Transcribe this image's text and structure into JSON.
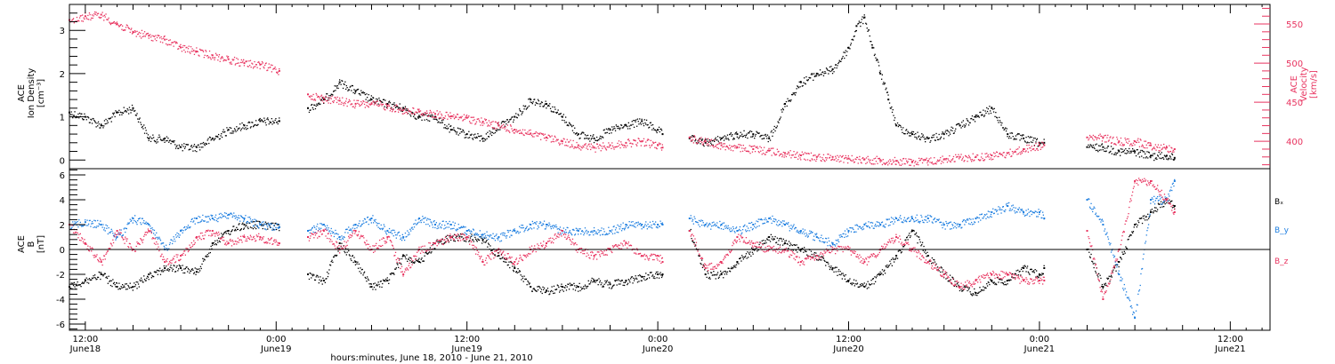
{
  "window": {
    "title": ""
  },
  "colors": {
    "density": "#000000",
    "velocity": "#e8335f",
    "bx": "#000000",
    "by": "#1f7fe0",
    "bz": "#e8335f",
    "frame": "#000000"
  },
  "xaxis": {
    "label": "hours:minutes, June 18, 2010 - June 21, 2010",
    "tick_labels": [
      {
        "hour": 12,
        "time": "12:00",
        "date": "June18"
      },
      {
        "hour": 24,
        "time": "0:00",
        "date": "June19"
      },
      {
        "hour": 36,
        "time": "12:00",
        "date": "June19"
      },
      {
        "hour": 48,
        "time": "0:00",
        "date": "June20"
      },
      {
        "hour": 60,
        "time": "12:00",
        "date": "June20"
      },
      {
        "hour": 72,
        "time": "0:00",
        "date": "June21"
      },
      {
        "hour": 84,
        "time": "12:00",
        "date": "June21"
      }
    ]
  },
  "chart_data": [
    {
      "type": "scatter",
      "panel": "top",
      "title": "",
      "left_axis": {
        "label_lines": [
          "ACE",
          "Ion Density",
          "[cm⁻³]"
        ],
        "ylim": [
          -0.2,
          3.6
        ],
        "ticks": [
          0,
          1,
          2,
          3
        ]
      },
      "right_axis": {
        "label_lines": [
          "ACE",
          "Velocity",
          "[km/s]"
        ],
        "ylim": [
          365,
          575
        ],
        "ticks": [
          400,
          450,
          500,
          550
        ]
      },
      "xlim_hours": [
        11.0,
        86.5
      ],
      "grid": false,
      "series": [
        {
          "axis": "left",
          "color": "density",
          "x_hours": [
            11.0,
            12.0,
            13.0,
            14.0,
            15.0,
            16.0,
            17.0,
            18.0,
            19.0,
            20.0,
            21.0,
            22.0,
            23.0,
            24.2,
            26.0,
            27.0,
            28.0,
            29.0,
            30.0,
            31.0,
            32.0,
            33.0,
            34.0,
            35.0,
            36.0,
            37.0,
            38.0,
            39.0,
            40.0,
            41.0,
            42.0,
            43.0,
            44.0,
            45.0,
            46.0,
            47.0,
            48.0,
            48.3,
            50.0,
            51.0,
            52.0,
            53.0,
            54.0,
            55.0,
            56.0,
            57.0,
            58.0,
            59.0,
            60.0,
            60.5,
            61.0,
            61.5,
            62.0,
            62.5,
            63.0,
            64.0,
            65.0,
            66.0,
            67.0,
            68.0,
            69.0,
            70.0,
            71.0,
            72.0,
            72.3,
            75.0,
            76.0,
            77.0,
            78.0,
            79.0,
            80.0,
            80.5
          ],
          "y": [
            1.1,
            1.0,
            0.8,
            1.1,
            1.2,
            0.5,
            0.5,
            0.3,
            0.3,
            0.5,
            0.7,
            0.8,
            0.9,
            0.9,
            1.2,
            1.4,
            1.8,
            1.6,
            1.4,
            1.3,
            1.2,
            1.0,
            1.0,
            0.7,
            0.6,
            0.5,
            0.8,
            1.0,
            1.4,
            1.3,
            1.0,
            0.6,
            0.5,
            0.7,
            0.8,
            0.9,
            0.7,
            0.6,
            0.5,
            0.4,
            0.5,
            0.6,
            0.6,
            0.5,
            1.3,
            1.8,
            2.0,
            2.1,
            2.6,
            3.1,
            3.3,
            2.6,
            2.0,
            1.4,
            0.8,
            0.6,
            0.5,
            0.6,
            0.8,
            1.0,
            1.2,
            0.6,
            0.5,
            0.4,
            0.4,
            0.3,
            0.3,
            0.2,
            0.2,
            0.1,
            0.1,
            0.05
          ]
        },
        {
          "axis": "right",
          "color": "velocity",
          "x_hours": [
            11.0,
            12.0,
            13.0,
            14.0,
            15.0,
            16.0,
            17.0,
            18.0,
            19.0,
            20.0,
            21.0,
            22.0,
            23.0,
            24.2,
            26.0,
            27.0,
            28.0,
            29.0,
            30.0,
            31.0,
            32.0,
            33.0,
            34.0,
            35.0,
            36.0,
            37.0,
            38.0,
            39.0,
            40.0,
            41.0,
            42.0,
            43.0,
            44.0,
            45.0,
            46.0,
            47.0,
            48.0,
            48.3,
            50.0,
            51.0,
            52.0,
            53.0,
            54.0,
            55.0,
            56.0,
            57.0,
            58.0,
            59.0,
            60.0,
            61.0,
            62.0,
            63.0,
            64.0,
            65.0,
            66.0,
            67.0,
            68.0,
            69.0,
            70.0,
            71.0,
            72.0,
            72.3,
            75.0,
            76.0,
            77.0,
            78.0,
            79.0,
            80.0,
            80.5
          ],
          "y": [
            555,
            560,
            562,
            550,
            540,
            535,
            530,
            520,
            515,
            510,
            505,
            500,
            498,
            490,
            460,
            455,
            452,
            448,
            448,
            445,
            440,
            438,
            435,
            432,
            430,
            425,
            420,
            415,
            410,
            405,
            400,
            395,
            392,
            395,
            398,
            400,
            395,
            392,
            405,
            400,
            395,
            392,
            390,
            388,
            385,
            382,
            380,
            380,
            378,
            377,
            376,
            375,
            374,
            375,
            377,
            380,
            380,
            382,
            385,
            390,
            395,
            395,
            405,
            405,
            400,
            400,
            395,
            392,
            390
          ]
        }
      ]
    },
    {
      "type": "scatter",
      "panel": "bottom",
      "title": "",
      "left_axis": {
        "label_lines": [
          "ACE",
          "B",
          "[nT]"
        ],
        "ylim": [
          -6.5,
          6.5
        ],
        "ticks": [
          -6,
          -4,
          -2,
          0,
          2,
          4,
          6
        ]
      },
      "xlim_hours": [
        11.0,
        86.5
      ],
      "zero_line": true,
      "grid": false,
      "legend": {
        "placement": "right",
        "entries": [
          "Bₓ",
          "B_y",
          "B_z"
        ]
      },
      "series": [
        {
          "name": "Bₓ",
          "color": "bx",
          "x_hours": [
            11.0,
            12.0,
            13.0,
            14.0,
            15.0,
            16.0,
            17.0,
            18.0,
            19.0,
            20.0,
            21.0,
            22.0,
            23.0,
            24.2,
            26.0,
            27.0,
            28.0,
            29.0,
            30.0,
            31.0,
            32.0,
            33.0,
            34.0,
            35.0,
            36.0,
            37.0,
            38.0,
            39.0,
            40.0,
            41.0,
            42.0,
            43.0,
            44.0,
            45.0,
            46.0,
            47.0,
            48.0,
            48.3,
            50.0,
            51.0,
            52.0,
            53.0,
            54.0,
            55.0,
            56.0,
            57.0,
            58.0,
            59.0,
            60.0,
            61.0,
            62.0,
            63.0,
            64.0,
            65.0,
            66.0,
            67.0,
            68.0,
            69.0,
            70.0,
            71.0,
            72.0,
            72.3,
            75.0,
            76.0,
            77.0,
            78.0,
            79.0,
            80.0,
            80.5
          ],
          "y": [
            -3.0,
            -2.5,
            -2.0,
            -3.0,
            -3.0,
            -2.0,
            -1.5,
            -1.5,
            -1.8,
            0.5,
            1.5,
            2.0,
            2.0,
            1.8,
            -2.0,
            -2.5,
            0.5,
            -1.0,
            -3.0,
            -2.5,
            -0.5,
            -1.0,
            0.5,
            1.0,
            1.0,
            0.8,
            -0.5,
            -1.5,
            -3.0,
            -3.3,
            -3.0,
            -3.0,
            -2.5,
            -2.8,
            -2.5,
            -2.2,
            -2.0,
            -2.0,
            1.5,
            -2.0,
            -2.0,
            -1.0,
            0.0,
            1.0,
            0.5,
            0.0,
            -0.5,
            -1.5,
            -2.5,
            -3.0,
            -2.0,
            -0.5,
            1.5,
            -0.5,
            -2.0,
            -3.0,
            -3.5,
            -2.5,
            -2.5,
            -1.5,
            -2.0,
            -1.5,
            0.0,
            -3.0,
            -1.0,
            2.0,
            3.0,
            4.0,
            3.5
          ]
        },
        {
          "name": "B_y",
          "color": "by",
          "x_hours": [
            11.0,
            12.0,
            13.0,
            14.0,
            15.0,
            16.0,
            17.0,
            18.0,
            19.0,
            20.0,
            21.0,
            22.0,
            23.0,
            24.2,
            26.0,
            27.0,
            28.0,
            29.0,
            30.0,
            31.0,
            32.0,
            33.0,
            34.0,
            35.0,
            36.0,
            37.0,
            38.0,
            39.0,
            40.0,
            41.0,
            42.0,
            43.0,
            44.0,
            45.0,
            46.0,
            47.0,
            48.0,
            48.3,
            50.0,
            51.0,
            52.0,
            53.0,
            54.0,
            55.0,
            56.0,
            57.0,
            58.0,
            59.0,
            60.0,
            61.0,
            62.0,
            63.0,
            64.0,
            65.0,
            66.0,
            67.0,
            68.0,
            69.0,
            70.0,
            71.0,
            72.0,
            72.3,
            75.0,
            76.0,
            77.0,
            78.0,
            79.0,
            80.0,
            80.5
          ],
          "y": [
            2.0,
            2.2,
            2.0,
            1.0,
            2.5,
            2.0,
            0.0,
            1.5,
            2.5,
            2.5,
            2.8,
            2.5,
            2.0,
            1.8,
            1.5,
            2.0,
            1.0,
            2.0,
            2.5,
            1.5,
            1.0,
            2.5,
            2.0,
            2.0,
            1.5,
            1.2,
            1.0,
            1.5,
            2.0,
            2.0,
            1.5,
            1.5,
            1.5,
            1.5,
            2.0,
            2.0,
            2.0,
            2.0,
            2.5,
            2.0,
            2.0,
            1.5,
            2.0,
            2.5,
            2.0,
            1.5,
            1.0,
            0.5,
            1.5,
            2.0,
            2.0,
            2.5,
            2.5,
            2.5,
            2.0,
            2.0,
            2.5,
            3.0,
            3.5,
            3.0,
            3.0,
            2.5,
            4.0,
            2.0,
            -2.0,
            -5.5,
            4.0,
            4.0,
            5.5
          ]
        },
        {
          "name": "B_z",
          "color": "bz",
          "x_hours": [
            11.0,
            12.0,
            13.0,
            14.0,
            15.0,
            16.0,
            17.0,
            18.0,
            19.0,
            20.0,
            21.0,
            22.0,
            23.0,
            24.2,
            26.0,
            27.0,
            28.0,
            29.0,
            30.0,
            31.0,
            32.0,
            33.0,
            34.0,
            35.0,
            36.0,
            37.0,
            38.0,
            39.0,
            40.0,
            41.0,
            42.0,
            43.0,
            44.0,
            45.0,
            46.0,
            47.0,
            48.0,
            48.3,
            50.0,
            51.0,
            52.0,
            53.0,
            54.0,
            55.0,
            56.0,
            57.0,
            58.0,
            59.0,
            60.0,
            61.0,
            62.0,
            63.0,
            64.0,
            65.0,
            66.0,
            67.0,
            68.0,
            69.0,
            70.0,
            71.0,
            72.0,
            72.3,
            75.0,
            76.0,
            77.0,
            78.0,
            79.0,
            80.0,
            80.5
          ],
          "y": [
            2.0,
            0.5,
            -1.0,
            1.5,
            0.0,
            1.5,
            -1.0,
            -0.5,
            1.0,
            1.5,
            0.5,
            1.0,
            1.0,
            0.5,
            1.0,
            1.5,
            0.0,
            1.5,
            0.0,
            1.0,
            -2.0,
            0.0,
            0.5,
            1.0,
            1.0,
            -1.0,
            0.0,
            -1.0,
            0.0,
            0.5,
            1.5,
            0.0,
            -0.5,
            0.0,
            0.5,
            -0.5,
            -0.5,
            -1.0,
            1.5,
            -1.5,
            -1.0,
            1.0,
            0.5,
            0.0,
            0.0,
            -1.0,
            -0.5,
            0.0,
            0.0,
            -1.0,
            0.0,
            1.0,
            0.0,
            -1.0,
            -2.0,
            -3.0,
            -2.5,
            -2.0,
            -2.0,
            -2.5,
            -2.5,
            -2.5,
            1.5,
            -4.0,
            0.0,
            5.5,
            5.5,
            4.0,
            3.0
          ]
        }
      ]
    }
  ]
}
